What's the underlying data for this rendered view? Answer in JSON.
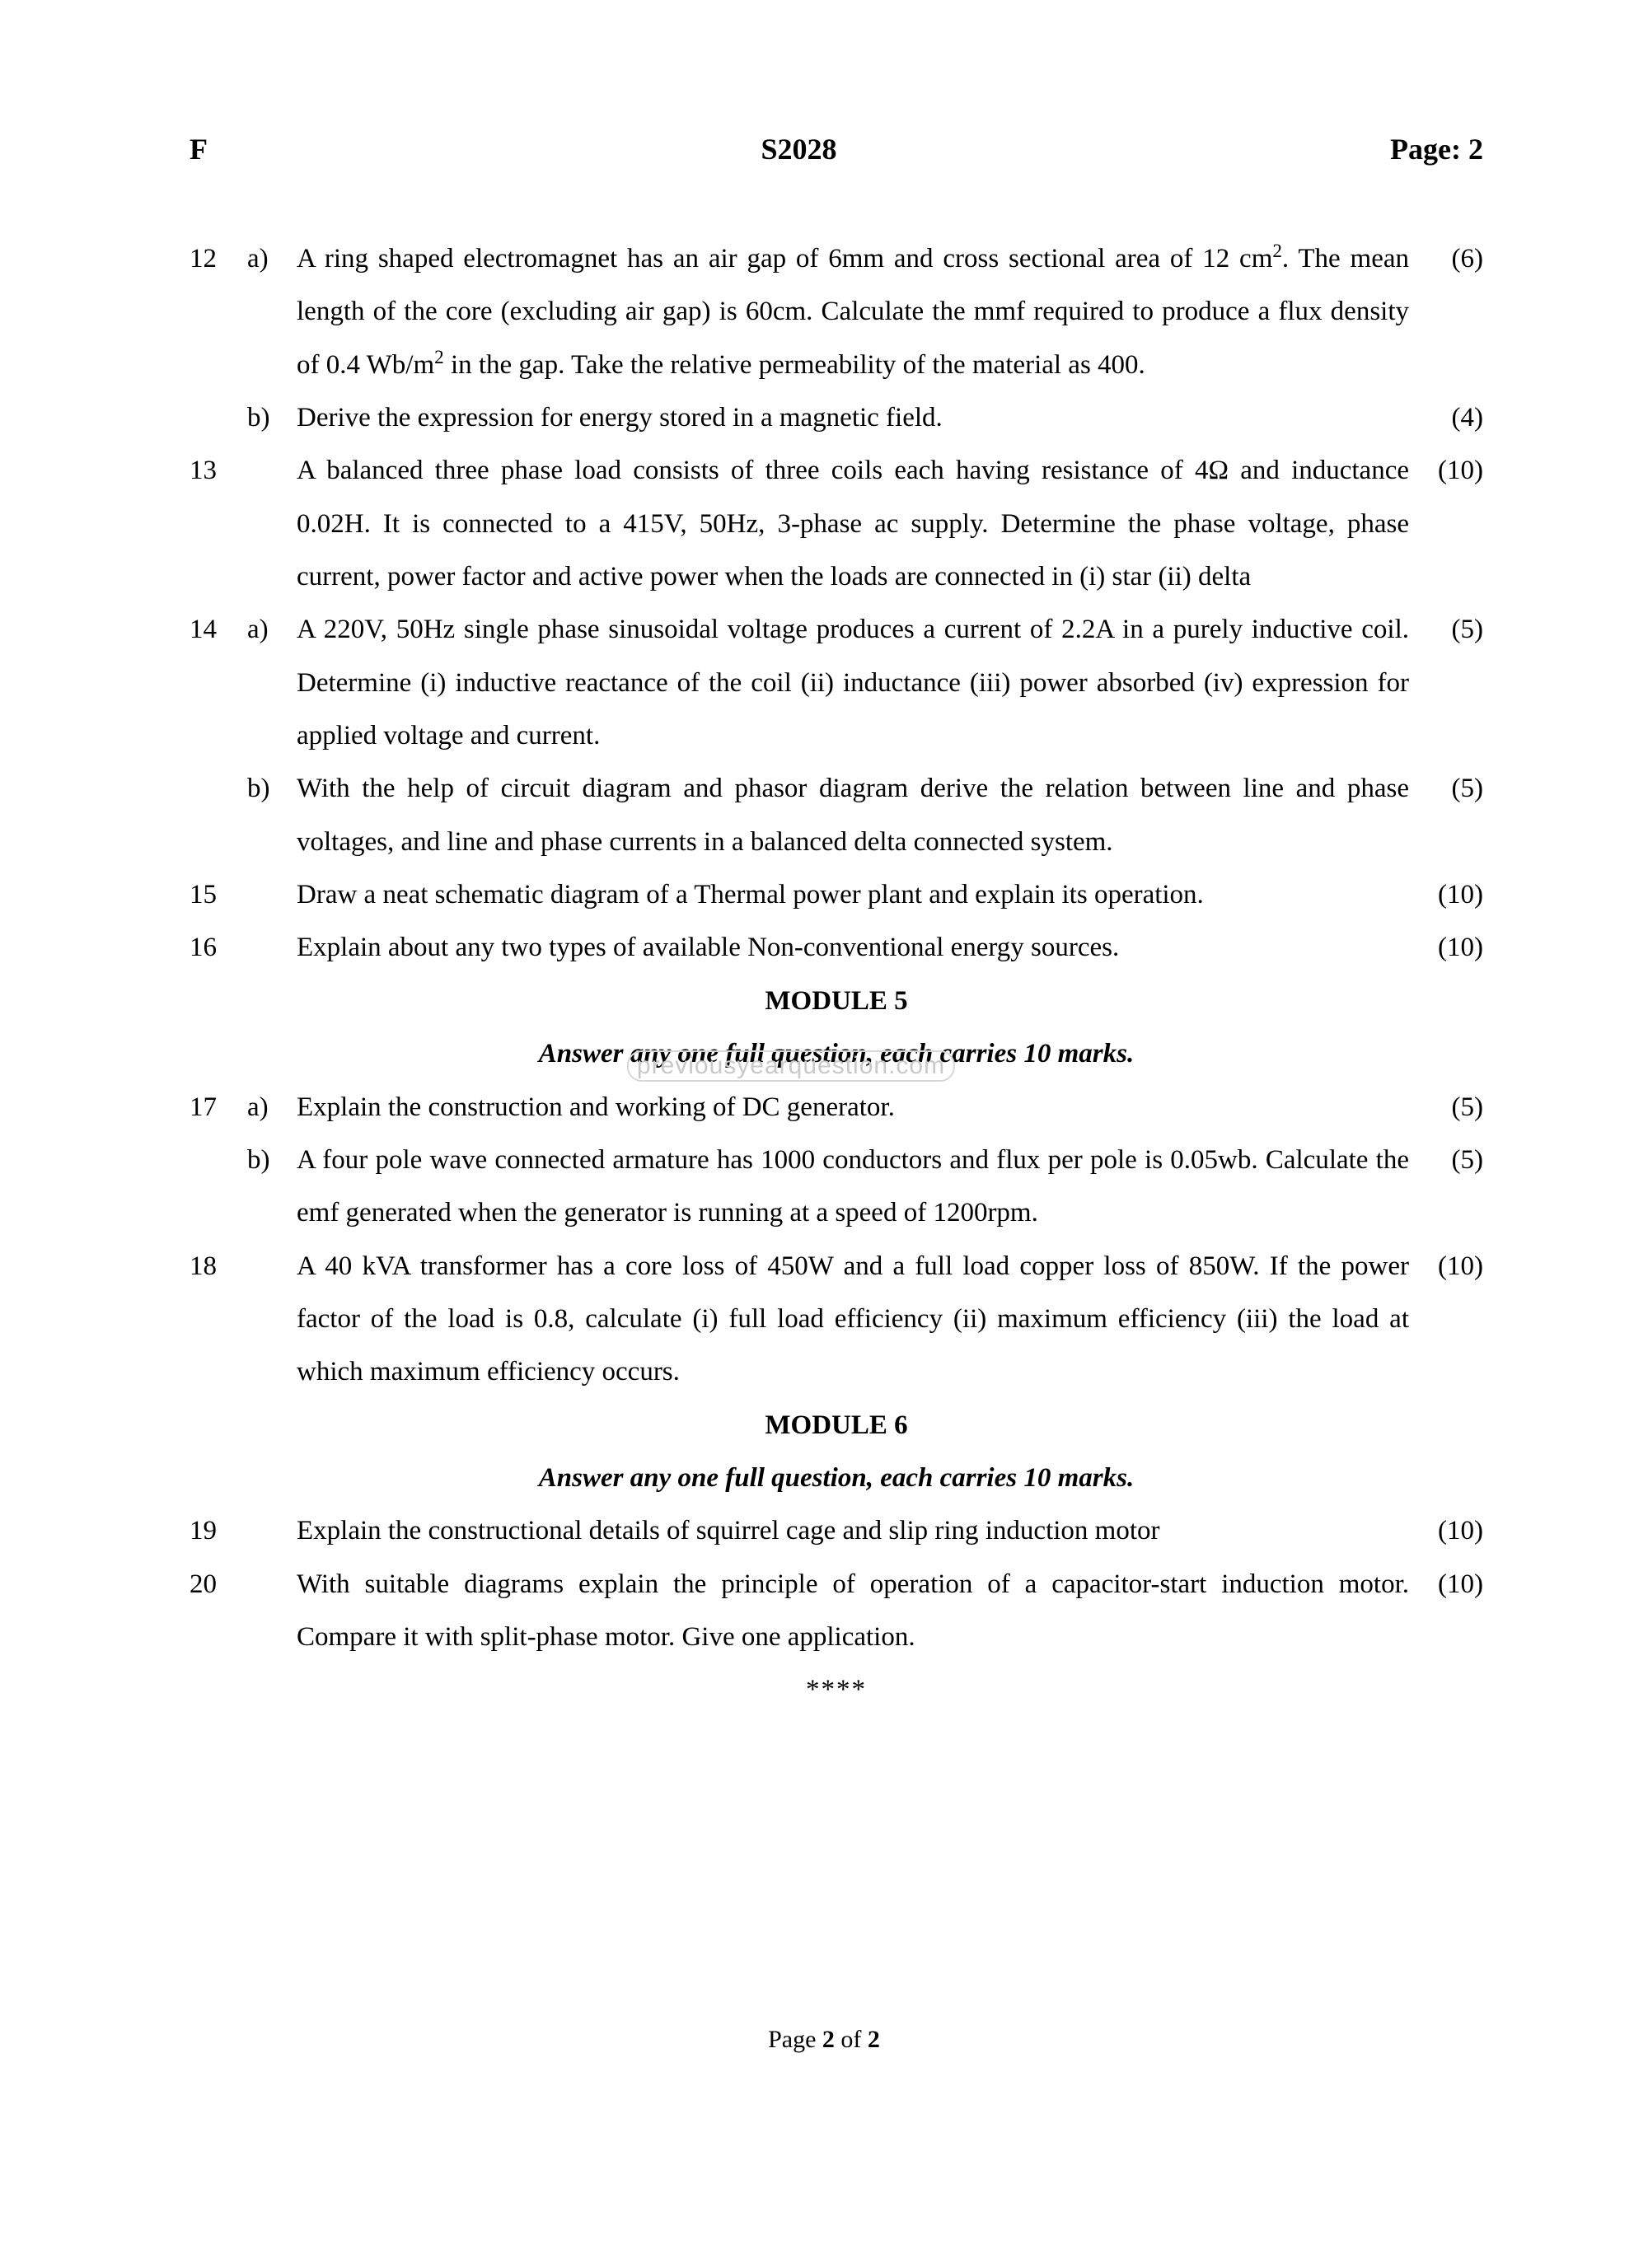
{
  "header": {
    "left": "F",
    "center": "S2028",
    "right": "Page: 2"
  },
  "watermark": "previousyearquestion.com",
  "footer": {
    "prefix": "Page ",
    "current": "2",
    "mid": " of ",
    "total": "2"
  },
  "end_marker": "****",
  "module5": {
    "title": "MODULE 5",
    "instruction": "Answer any one full question, each carries 10 marks."
  },
  "module6": {
    "title": "MODULE 6",
    "instruction": "Answer any one full question, each carries 10 marks."
  },
  "q12a": {
    "num": "12",
    "sub": "a)",
    "text": "A ring shaped electromagnet has an air gap of 6mm and cross sectional area of 12 cm². The mean length of the core (excluding air gap) is 60cm. Calculate the mmf required to produce a flux density of 0.4 Wb/m² in the gap. Take the relative permeability of the material as 400.",
    "marks": "(6)"
  },
  "q12b": {
    "sub": "b)",
    "text": "Derive the expression for energy stored in a magnetic field.",
    "marks": "(4)"
  },
  "q13": {
    "num": "13",
    "text": "A balanced three phase load consists of three coils each having resistance of 4Ω and inductance 0.02H. It is connected to a 415V, 50Hz, 3-phase ac supply. Determine the phase voltage, phase current, power factor and active power when the loads are connected in (i) star (ii) delta",
    "marks": "(10)"
  },
  "q14a": {
    "num": "14",
    "sub": "a)",
    "text": "A 220V, 50Hz single phase sinusoidal voltage produces a current of 2.2A in a purely inductive coil. Determine (i) inductive reactance of the coil (ii) inductance (iii) power absorbed (iv) expression for applied voltage and current.",
    "marks": "(5)"
  },
  "q14b": {
    "sub": "b)",
    "text": "With the help of circuit diagram and phasor diagram derive the relation between line and phase voltages, and line and phase currents in a balanced delta connected system.",
    "marks": "(5)"
  },
  "q15": {
    "num": "15",
    "text": "Draw a neat schematic diagram of a Thermal power plant and explain its operation.",
    "marks": "(10)"
  },
  "q16": {
    "num": "16",
    "text": "Explain about any two types of available Non-conventional energy sources.",
    "marks": "(10)"
  },
  "q17a": {
    "num": "17",
    "sub": "a)",
    "text": "Explain the construction and working of DC generator.",
    "marks": "(5)"
  },
  "q17b": {
    "sub": "b)",
    "text": "A four pole wave connected armature has 1000 conductors and flux per pole is 0.05wb. Calculate the emf generated when the generator is running at a speed of 1200rpm.",
    "marks": "(5)"
  },
  "q18": {
    "num": "18",
    "text": "A 40 kVA transformer has a core loss of 450W and a full load copper loss of 850W. If the power factor of the load is 0.8, calculate  (i) full load efficiency (ii) maximum efficiency (iii) the load at which maximum efficiency occurs.",
    "marks": "(10)"
  },
  "q19": {
    "num": "19",
    "text": "Explain the constructional details of squirrel cage and slip ring induction motor",
    "marks": "(10)"
  },
  "q20": {
    "num": "20",
    "text": "With suitable diagrams explain the principle of operation of a capacitor-start induction motor. Compare it with split-phase motor. Give one   application.",
    "marks": "(10)"
  }
}
